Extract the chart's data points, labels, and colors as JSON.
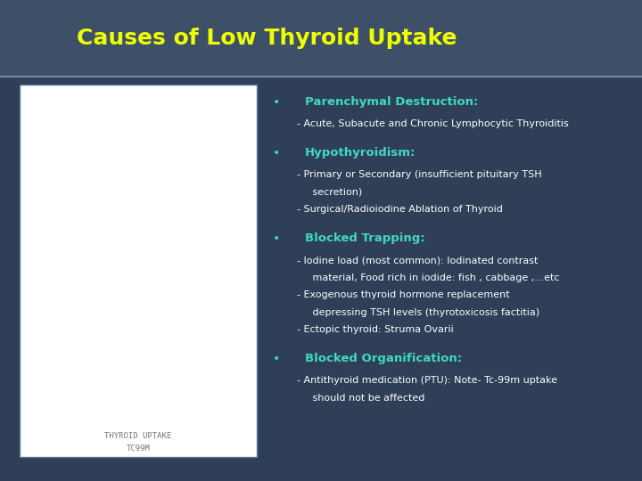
{
  "title": "Causes of Low Thyroid Uptake",
  "title_color": "#EEFF00",
  "header_bg": "#3d5068",
  "body_bg": "#2e3f57",
  "bullet_color": "#40d9c0",
  "bullet_heading_color": "#40d9c0",
  "body_text_color": "#ffffff",
  "image_label1": "THYROID UPTAKE",
  "image_label2": "TC99M",
  "bullets": [
    {
      "heading": "Parenchymal Destruction:",
      "sub": [
        "- Acute, Subacute and Chronic Lymphocytic Thyroiditis"
      ]
    },
    {
      "heading": "Hypothyroidism:",
      "sub": [
        "- Primary or Secondary (insufficient pituitary TSH\n   secretion)",
        "- Surgical/Radioiodine Ablation of Thyroid"
      ]
    },
    {
      "heading": "Blocked Trapping:",
      "sub": [
        "- Iodine load (most common): Iodinated contrast\n   material, Food rich in iodide: fish , cabbage ,...etc",
        "- Exogenous thyroid hormone replacement\n   depressing TSH levels (thyrotoxicosis factitia)",
        "- Ectopic thyroid: Struma Ovarii"
      ]
    },
    {
      "heading": "Blocked Organification:",
      "sub": [
        "- Antithyroid medication (PTU): Note- Tc-99m uptake\n   should not be affected"
      ]
    }
  ]
}
